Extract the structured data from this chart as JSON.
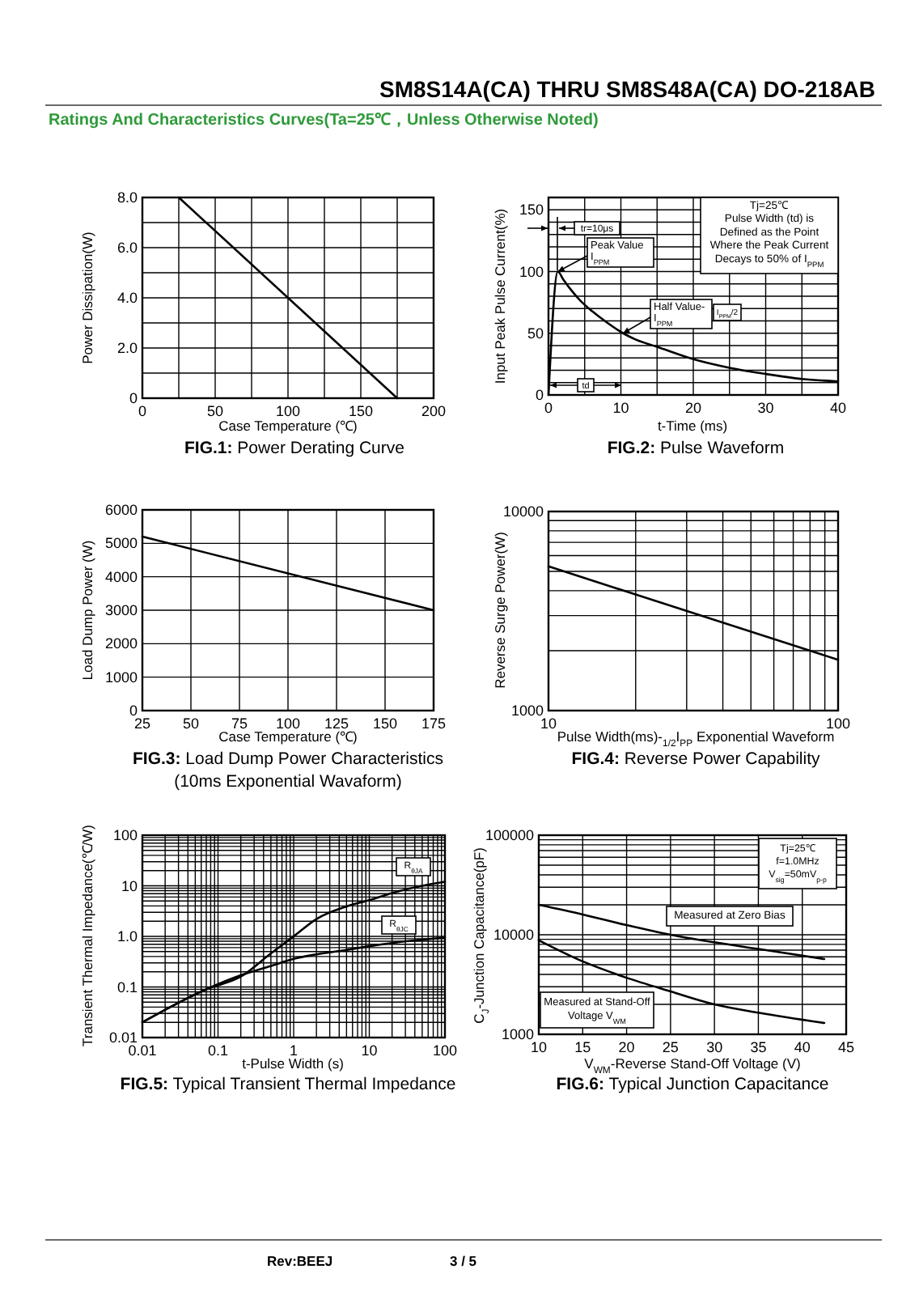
{
  "chart_data": [
    {
      "type": "other",
      "title": "SM8S14A(CA) THRU SM8S48A(CA)  DO-218AB",
      "subtitle": "Ratings And Characteristics Curves(Ta=25℃，Unless Otherwise Noted)"
    },
    {
      "type": "line",
      "title": "FIG.1: Power Derating Curve",
      "xlabel": "Case Temperature (℃)",
      "ylabel": "Power Dissipation(W)",
      "x": [
        25,
        175
      ],
      "values": [
        8,
        0
      ],
      "color": "#000000",
      "xlim": [
        0,
        200
      ],
      "xticks": [
        0,
        {
          "value": 25,
          "label": null
        },
        50,
        {
          "value": 75,
          "label": null
        },
        100,
        {
          "value": 125,
          "label": null
        },
        150,
        {
          "value": 175,
          "label": null
        },
        200
      ],
      "ylim": [
        0,
        8
      ],
      "yticks": [
        0,
        {
          "value": 1,
          "label": null
        },
        {
          "value": 2,
          "label": "2.0"
        },
        {
          "value": 3,
          "label": null
        },
        {
          "value": 4,
          "label": "4.0"
        },
        {
          "value": 5,
          "label": null
        },
        {
          "value": 6,
          "label": "6.0"
        },
        {
          "value": 7,
          "label": null
        },
        {
          "value": 8,
          "label": "8.0"
        }
      ],
      "grid": true
    },
    {
      "type": "line",
      "title": "FIG.2: Pulse Waveform",
      "xlabel": "t-Time (ms)",
      "ylabel": "Input Peak Pulse Current(%)",
      "x": [
        0,
        1.3,
        2,
        3,
        4,
        5,
        6,
        8,
        10.3,
        12,
        15,
        20,
        25,
        30,
        35,
        40
      ],
      "values": [
        0,
        100,
        94,
        86,
        79,
        73,
        68,
        59,
        50,
        45,
        39,
        29,
        22,
        17,
        13,
        11
      ],
      "color": "#000000",
      "xlim": [
        0,
        40
      ],
      "xticks": [
        0,
        {
          "value": 5,
          "label": null
        },
        10,
        {
          "value": 15,
          "label": null
        },
        20,
        {
          "value": 25,
          "label": null
        },
        30,
        {
          "value": 35,
          "label": null
        },
        40
      ],
      "ylim": [
        0,
        160
      ],
      "yticks": [
        0,
        {
          "value": 10,
          "label": null
        },
        {
          "value": 20,
          "label": null
        },
        {
          "value": 30,
          "label": null
        },
        {
          "value": 40,
          "label": null
        },
        50,
        {
          "value": 60,
          "label": null
        },
        {
          "value": 70,
          "label": null
        },
        {
          "value": 80,
          "label": null
        },
        {
          "value": 90,
          "label": null
        },
        100,
        {
          "value": 110,
          "label": null
        },
        {
          "value": 120,
          "label": null
        },
        {
          "value": 130,
          "label": null
        },
        {
          "value": 140,
          "label": null
        },
        150
      ],
      "grid": true,
      "annotations": [
        "Tj=25℃\nPulse Width (td) is\nDefined as the Point\nWhere the Peak Current\nDecays to 50% of I$_{PPM}$",
        "tr=10μs",
        {
          "text": "Peak Value\nI$_{PPM}$",
          "x": 1.3,
          "y": 100
        },
        {
          "text": "Half Value-\nI$_{PPM}$",
          "x": 10.3,
          "y": 50
        },
        "I$_{PPM}$/2",
        "td"
      ]
    },
    {
      "type": "line",
      "title": "FIG.3: Load Dump Power Characteristics",
      "subtitle": "(10ms Exponential Wavaform)",
      "xlabel": "Case Temperature (℃)",
      "ylabel": "Load Dump Power (W)",
      "x": [
        25,
        175
      ],
      "values": [
        5200,
        3000
      ],
      "color": "#000000",
      "xlim": [
        25,
        175
      ],
      "xticks": [
        25,
        50,
        75,
        100,
        125,
        150,
        175
      ],
      "ylim": [
        0,
        6000
      ],
      "yticks": [
        0,
        1000,
        2000,
        3000,
        4000,
        5000,
        6000
      ],
      "grid": true
    },
    {
      "type": "line",
      "title": "FIG.4: Reverse Power Capability",
      "xlabel": "Pulse Width(ms)-$_{1/2}$I$_{PP}$ Exponential Waveform",
      "ylabel": "Reverse Surge Power(W)",
      "x": [
        10,
        100
      ],
      "values": [
        5300,
        1800
      ],
      "color": "#000000",
      "log": "xy",
      "xlim": [
        10,
        100
      ],
      "xticks": [
        10,
        {
          "value": 20,
          "label": null
        },
        {
          "value": 30,
          "label": null
        },
        {
          "value": 40,
          "label": null
        },
        {
          "value": 50,
          "label": null
        },
        {
          "value": 60,
          "label": null
        },
        {
          "value": 70,
          "label": null
        },
        {
          "value": 80,
          "label": null
        },
        {
          "value": 90,
          "label": null
        },
        100
      ],
      "ylim": [
        1000,
        10000
      ],
      "yticks": [
        1000,
        {
          "value": 2000,
          "label": null
        },
        {
          "value": 3000,
          "label": null
        },
        {
          "value": 4000,
          "label": null
        },
        {
          "value": 5000,
          "label": null
        },
        {
          "value": 6000,
          "label": null
        },
        {
          "value": 7000,
          "label": null
        },
        {
          "value": 8000,
          "label": null
        },
        {
          "value": 9000,
          "label": null
        },
        10000
      ],
      "grid": true
    },
    {
      "type": "line",
      "title": "FIG.5: Typical Transient Thermal Impedance",
      "xlabel": "t-Pulse Width (s)",
      "ylabel": "Transient Thermal Impedance(℃/W)",
      "log": "xy",
      "xlim": [
        0.01,
        100
      ],
      "ylim": [
        0.01,
        100
      ],
      "xticks": [
        0.01,
        {
          "value": 0.02,
          "label": null
        },
        {
          "value": 0.03,
          "label": null
        },
        {
          "value": 0.04,
          "label": null
        },
        {
          "value": 0.05,
          "label": null
        },
        {
          "value": 0.06,
          "label": null
        },
        {
          "value": 0.07,
          "label": null
        },
        {
          "value": 0.08,
          "label": null
        },
        {
          "value": 0.09,
          "label": null
        },
        0.1,
        {
          "value": 0.2,
          "label": null
        },
        {
          "value": 0.3,
          "label": null
        },
        {
          "value": 0.4,
          "label": null
        },
        {
          "value": 0.5,
          "label": null
        },
        {
          "value": 0.6,
          "label": null
        },
        {
          "value": 0.7,
          "label": null
        },
        {
          "value": 0.8,
          "label": null
        },
        {
          "value": 0.9,
          "label": null
        },
        1,
        {
          "value": 2,
          "label": null
        },
        {
          "value": 3,
          "label": null
        },
        {
          "value": 4,
          "label": null
        },
        {
          "value": 5,
          "label": null
        },
        {
          "value": 6,
          "label": null
        },
        {
          "value": 7,
          "label": null
        },
        {
          "value": 8,
          "label": null
        },
        {
          "value": 9,
          "label": null
        },
        10,
        {
          "value": 20,
          "label": null
        },
        {
          "value": 30,
          "label": null
        },
        {
          "value": 40,
          "label": null
        },
        {
          "value": 50,
          "label": null
        },
        {
          "value": 60,
          "label": null
        },
        {
          "value": 70,
          "label": null
        },
        {
          "value": 80,
          "label": null
        },
        {
          "value": 90,
          "label": null
        },
        100
      ],
      "yticks": [
        0.01,
        {
          "value": 0.02,
          "label": null
        },
        {
          "value": 0.03,
          "label": null
        },
        {
          "value": 0.04,
          "label": null
        },
        {
          "value": 0.05,
          "label": null
        },
        {
          "value": 0.06,
          "label": null
        },
        {
          "value": 0.07,
          "label": null
        },
        {
          "value": 0.08,
          "label": null
        },
        {
          "value": 0.09,
          "label": null
        },
        0.1,
        {
          "value": 0.2,
          "label": null
        },
        {
          "value": 0.3,
          "label": null
        },
        {
          "value": 0.4,
          "label": null
        },
        {
          "value": 0.5,
          "label": null
        },
        {
          "value": 0.6,
          "label": null
        },
        {
          "value": 0.7,
          "label": null
        },
        {
          "value": 0.8,
          "label": null
        },
        {
          "value": 0.9,
          "label": null
        },
        {
          "value": 1,
          "label": "1.0"
        },
        {
          "value": 2,
          "label": null
        },
        {
          "value": 3,
          "label": null
        },
        {
          "value": 4,
          "label": null
        },
        {
          "value": 5,
          "label": null
        },
        {
          "value": 6,
          "label": null
        },
        {
          "value": 7,
          "label": null
        },
        {
          "value": 8,
          "label": null
        },
        {
          "value": 9,
          "label": null
        },
        10,
        {
          "value": 20,
          "label": null
        },
        {
          "value": 30,
          "label": null
        },
        {
          "value": 40,
          "label": null
        },
        {
          "value": 50,
          "label": null
        },
        {
          "value": 60,
          "label": null
        },
        {
          "value": 70,
          "label": null
        },
        {
          "value": 80,
          "label": null
        },
        {
          "value": 90,
          "label": null
        },
        100
      ],
      "grid": true,
      "series": [
        {
          "name": "R$_{θJA}$",
          "color": "#000000",
          "x": [
            0.01,
            0.07,
            0.2,
            0.5,
            1,
            2,
            5,
            10,
            20,
            50,
            100
          ],
          "values": [
            0.02,
            0.09,
            0.16,
            0.46,
            1.0,
            2.2,
            3.9,
            5.2,
            7.2,
            10,
            12
          ]
        },
        {
          "name": "R$_{θJC}$",
          "color": "#000000",
          "x": [
            0.01,
            0.07,
            0.2,
            0.5,
            1,
            2,
            5,
            10,
            20,
            50,
            100
          ],
          "values": [
            0.02,
            0.09,
            0.17,
            0.26,
            0.36,
            0.44,
            0.54,
            0.64,
            0.74,
            0.86,
            0.95
          ]
        }
      ]
    },
    {
      "type": "line",
      "title": "FIG.6: Typical Junction Capacitance",
      "xlabel": "V$_{WM}$-Reverse Stand-Off Voltage (V)",
      "ylabel": "C$_{J}$-Junction Capacitance(pF)",
      "log": "y",
      "xlim": [
        10,
        45
      ],
      "xticks": [
        10,
        15,
        20,
        25,
        30,
        35,
        40,
        45
      ],
      "ylim": [
        1000,
        100000
      ],
      "yticks": [
        1000,
        {
          "value": 2000,
          "label": null
        },
        {
          "value": 3000,
          "label": null
        },
        {
          "value": 4000,
          "label": null
        },
        {
          "value": 5000,
          "label": null
        },
        {
          "value": 6000,
          "label": null
        },
        {
          "value": 7000,
          "label": null
        },
        {
          "value": 8000,
          "label": null
        },
        {
          "value": 9000,
          "label": null
        },
        10000,
        {
          "value": 20000,
          "label": null
        },
        {
          "value": 30000,
          "label": null
        },
        {
          "value": 40000,
          "label": null
        },
        {
          "value": 50000,
          "label": null
        },
        {
          "value": 60000,
          "label": null
        },
        {
          "value": 70000,
          "label": null
        },
        {
          "value": 80000,
          "label": null
        },
        {
          "value": 90000,
          "label": null
        },
        100000
      ],
      "grid": true,
      "x": [
        10,
        15,
        20,
        25,
        30,
        35,
        42.5
      ],
      "series": [
        {
          "name": "Measured at Zero Bias",
          "color": "#000000",
          "values": [
            20000,
            16000,
            12500,
            10000,
            8400,
            7200,
            5700
          ]
        },
        {
          "name": "Measured at Stand-Off\nVoltage V$_{WM}$",
          "color": "#000000",
          "values": [
            8800,
            5400,
            3700,
            2700,
            2000,
            1650,
            1300
          ]
        }
      ],
      "annotations": [
        "Tj=25℃\nf=1.0MHz\nV$_{sig}$=50mV$_{p-p}$"
      ]
    },
    {
      "type": "other",
      "annotations": [
        "Rev:BEEJ",
        "3 / 5"
      ]
    }
  ]
}
